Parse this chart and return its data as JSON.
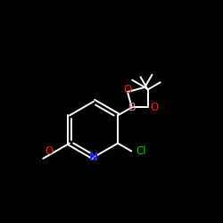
{
  "bg_color": "#000000",
  "atom_color_N": "#2222ff",
  "atom_color_O": "#ff2020",
  "atom_color_B": "#cc88aa",
  "atom_color_Cl": "#00cc00",
  "bond_color": "#ffffff",
  "figsize": [
    2.5,
    2.5
  ],
  "dpi": 100,
  "xlim": [
    0,
    10
  ],
  "ylim": [
    0,
    10
  ]
}
